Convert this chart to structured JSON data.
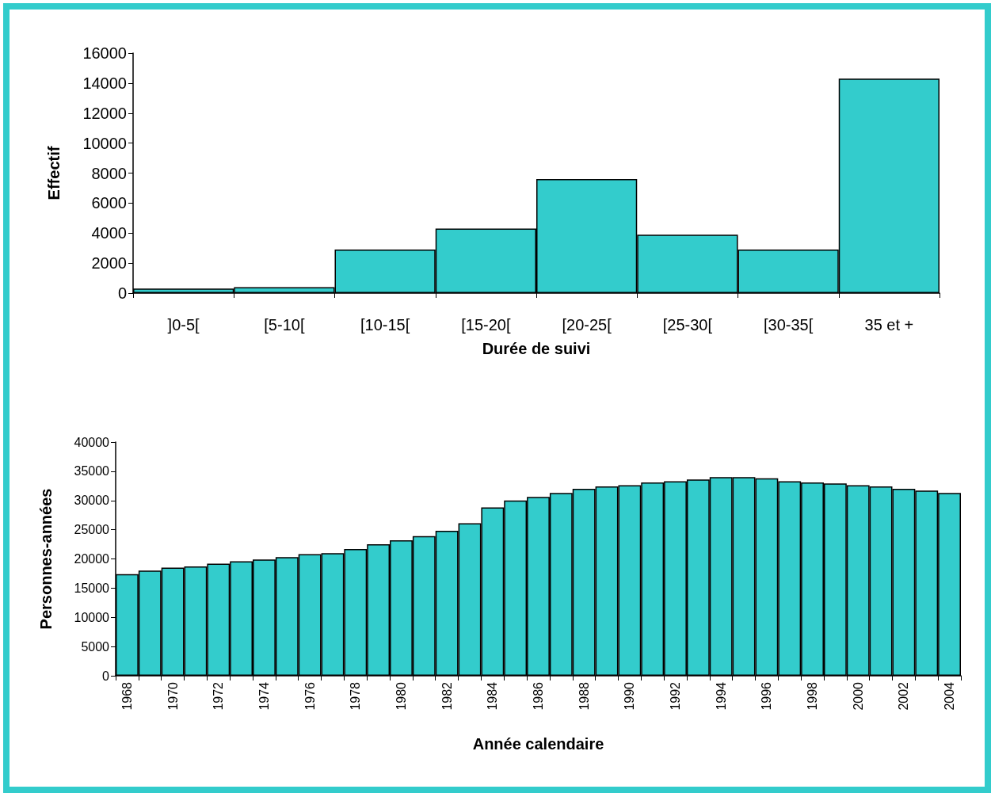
{
  "chart_data": [
    {
      "type": "bar",
      "xlabel": "Durée de suivi",
      "ylabel": "Effectif",
      "categories": [
        "]0-5[",
        "[5-10[",
        "[10-15[",
        "[15-20[",
        "[20-25[",
        "[25-30[",
        "[30-35[",
        "35 et +"
      ],
      "values": [
        300,
        400,
        2900,
        4300,
        7600,
        3900,
        2900,
        14300
      ],
      "color": "#33cccc",
      "ylim": [
        0,
        16000
      ],
      "yticks": [
        0,
        2000,
        4000,
        6000,
        8000,
        10000,
        12000,
        14000,
        16000
      ]
    },
    {
      "type": "bar",
      "xlabel": "Année calendaire",
      "ylabel": "Personnes-années",
      "categories": [
        "1968",
        null,
        "1970",
        null,
        "1972",
        null,
        "1974",
        null,
        "1976",
        null,
        "1978",
        null,
        "1980",
        null,
        "1982",
        null,
        "1984",
        null,
        "1986",
        null,
        "1988",
        null,
        "1990",
        null,
        "1992",
        null,
        "1994",
        null,
        "1996",
        null,
        "1998",
        null,
        "2000",
        null,
        "2002",
        null,
        "2004"
      ],
      "values": [
        17400,
        18000,
        18500,
        18700,
        19200,
        19600,
        19900,
        20300,
        20800,
        21000,
        21700,
        22500,
        23200,
        23900,
        24800,
        26100,
        28800,
        30000,
        30600,
        31300,
        32000,
        32400,
        32600,
        33100,
        33300,
        33600,
        34000,
        34000,
        33800,
        33300,
        33100,
        32900,
        32600,
        32400,
        32000,
        31700,
        31300
      ],
      "color": "#33cccc",
      "ylim": [
        0,
        40000
      ],
      "yticks": [
        0,
        5000,
        10000,
        15000,
        20000,
        25000,
        30000,
        35000,
        40000
      ]
    }
  ]
}
